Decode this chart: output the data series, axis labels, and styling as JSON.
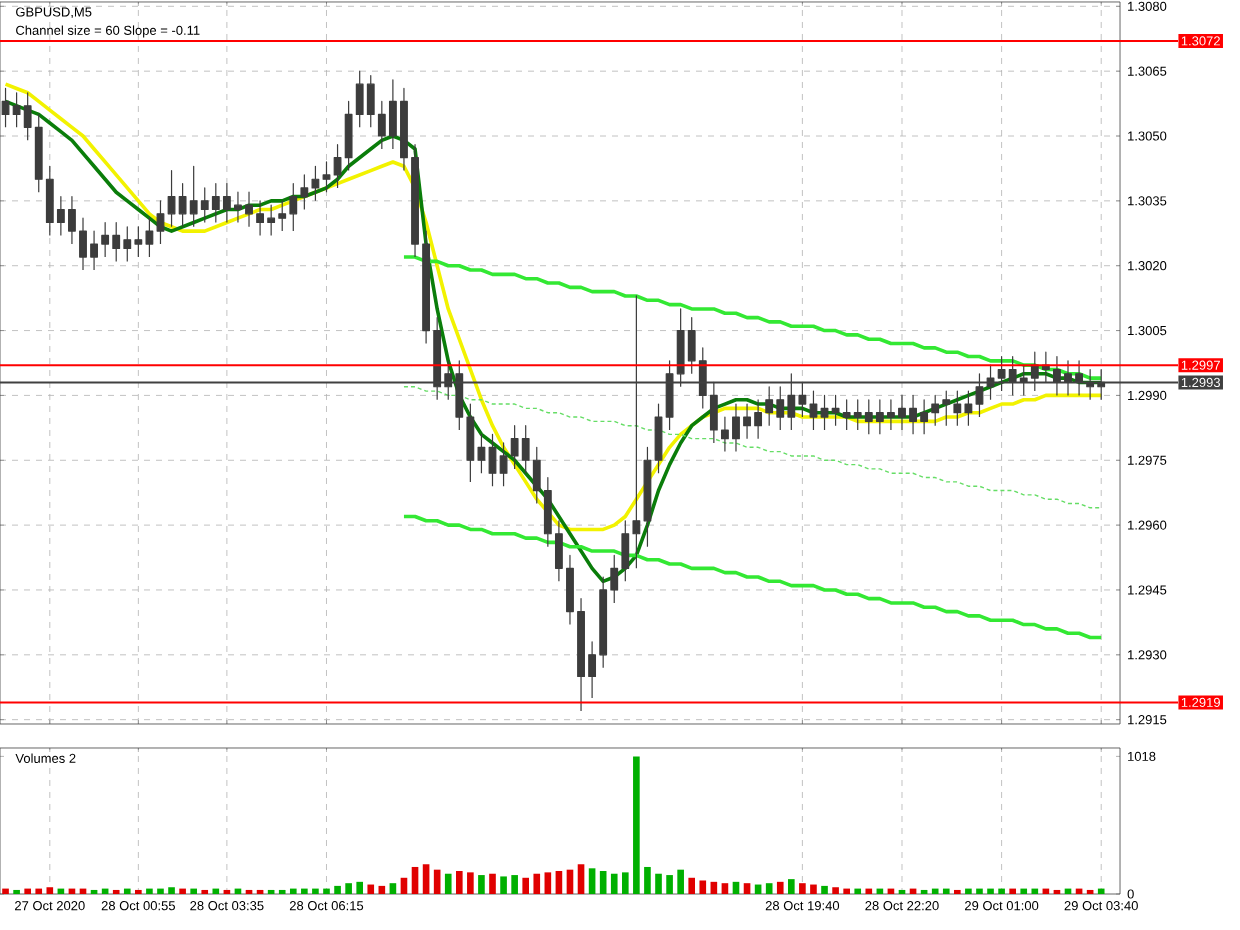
{
  "chart_data": [
    {
      "type": "candlestick",
      "title": "GBPUSD,M5",
      "annotations": [
        "Channel size = 60 Slope = -0.11"
      ],
      "categories": [
        null,
        null,
        null,
        null,
        null,
        null,
        null,
        null,
        null,
        null,
        null,
        null,
        null,
        null,
        null,
        null,
        null,
        null,
        null,
        null,
        null,
        null,
        null,
        null,
        null,
        null,
        null,
        null,
        null,
        null,
        null,
        null,
        null,
        null,
        null,
        null,
        null,
        null,
        null,
        null,
        null,
        null,
        null,
        null,
        null,
        null,
        null,
        null,
        null,
        null,
        null,
        null,
        null,
        null,
        null,
        null,
        null,
        null,
        null,
        null,
        null,
        null,
        null,
        null,
        null,
        null,
        null,
        null,
        null,
        null,
        null,
        null,
        null,
        null,
        null,
        null,
        null,
        null,
        null,
        null,
        null,
        null,
        null,
        null,
        null,
        null,
        null,
        null,
        null,
        null,
        null,
        null,
        null,
        null,
        null,
        null,
        null,
        null,
        null,
        null
      ],
      "color": "#3c3c3c",
      "ohlc": [
        [
          1.3058,
          1.3061,
          1.3052,
          1.3055
        ],
        [
          1.3055,
          1.306,
          1.3052,
          1.3057
        ],
        [
          1.3057,
          1.306,
          1.3049,
          1.3052
        ],
        [
          1.3052,
          1.3055,
          1.3037,
          1.304
        ],
        [
          1.304,
          1.3043,
          1.3027,
          1.303
        ],
        [
          1.303,
          1.3036,
          1.3027,
          1.3033
        ],
        [
          1.3033,
          1.3036,
          1.3025,
          1.3028
        ],
        [
          1.3028,
          1.3031,
          1.3019,
          1.3022
        ],
        [
          1.3022,
          1.3028,
          1.3019,
          1.3025
        ],
        [
          1.3025,
          1.303,
          1.3022,
          1.3027
        ],
        [
          1.3027,
          1.303,
          1.3021,
          1.3024
        ],
        [
          1.3024,
          1.3029,
          1.3021,
          1.3026
        ],
        [
          1.3026,
          1.3029,
          1.3022,
          1.3025
        ],
        [
          1.3025,
          1.3031,
          1.3022,
          1.3028
        ],
        [
          1.3028,
          1.3035,
          1.3025,
          1.3032
        ],
        [
          1.3032,
          1.3042,
          1.3029,
          1.3036
        ],
        [
          1.3036,
          1.3039,
          1.3029,
          1.3032
        ],
        [
          1.3032,
          1.3043,
          1.3029,
          1.3035
        ],
        [
          1.3035,
          1.3038,
          1.303,
          1.3033
        ],
        [
          1.3033,
          1.3039,
          1.303,
          1.3036
        ],
        [
          1.3036,
          1.3039,
          1.303,
          1.3033
        ],
        [
          1.3033,
          1.3037,
          1.303,
          1.3034
        ],
        [
          1.3034,
          1.3037,
          1.3029,
          1.3032
        ],
        [
          1.3032,
          1.3035,
          1.3027,
          1.303
        ],
        [
          1.303,
          1.3034,
          1.3027,
          1.3031
        ],
        [
          1.3031,
          1.3035,
          1.3028,
          1.3032
        ],
        [
          1.3032,
          1.3039,
          1.3028,
          1.3036
        ],
        [
          1.3036,
          1.3041,
          1.3033,
          1.3038
        ],
        [
          1.3038,
          1.3043,
          1.3035,
          1.304
        ],
        [
          1.304,
          1.3044,
          1.3037,
          1.3041
        ],
        [
          1.3041,
          1.3048,
          1.3038,
          1.3045
        ],
        [
          1.3045,
          1.3058,
          1.3042,
          1.3055
        ],
        [
          1.3055,
          1.3065,
          1.3052,
          1.3062
        ],
        [
          1.3062,
          1.3064,
          1.3052,
          1.3055
        ],
        [
          1.3055,
          1.3058,
          1.3047,
          1.305
        ],
        [
          1.305,
          1.3063,
          1.3047,
          1.3058
        ],
        [
          1.3058,
          1.3061,
          1.3042,
          1.3045
        ],
        [
          1.3045,
          1.3048,
          1.3022,
          1.3025
        ],
        [
          1.3025,
          1.3028,
          1.3002,
          1.3005
        ],
        [
          1.3005,
          1.3008,
          1.2989,
          1.2992
        ],
        [
          1.2992,
          1.2998,
          1.2989,
          1.2995
        ],
        [
          1.2995,
          1.2998,
          1.2982,
          1.2985
        ],
        [
          1.2985,
          1.2988,
          1.297,
          1.2975
        ],
        [
          1.2975,
          1.2981,
          1.2972,
          1.2978
        ],
        [
          1.2978,
          1.2981,
          1.2969,
          1.2972
        ],
        [
          1.2972,
          1.2979,
          1.2969,
          1.2976
        ],
        [
          1.2976,
          1.2983,
          1.2973,
          1.298
        ],
        [
          1.298,
          1.2983,
          1.2972,
          1.2975
        ],
        [
          1.2975,
          1.2978,
          1.2965,
          1.2968
        ],
        [
          1.2968,
          1.2971,
          1.2955,
          1.2958
        ],
        [
          1.2958,
          1.2961,
          1.2947,
          1.295
        ],
        [
          1.295,
          1.2953,
          1.2937,
          1.294
        ],
        [
          1.294,
          1.2943,
          1.2917,
          1.2925
        ],
        [
          1.2925,
          1.2933,
          1.292,
          1.293
        ],
        [
          1.293,
          1.2948,
          1.2927,
          1.2945
        ],
        [
          1.2945,
          1.2953,
          1.2942,
          1.295
        ],
        [
          1.295,
          1.2961,
          1.2947,
          1.2958
        ],
        [
          1.2958,
          1.3013,
          1.295,
          1.2961
        ],
        [
          1.2961,
          1.2978,
          1.2955,
          1.2975
        ],
        [
          1.2975,
          1.2988,
          1.2972,
          1.2985
        ],
        [
          1.2985,
          1.2998,
          1.2982,
          1.2995
        ],
        [
          1.2995,
          1.301,
          1.2992,
          1.3005
        ],
        [
          1.3005,
          1.3008,
          1.2995,
          1.2998
        ],
        [
          1.2998,
          1.3001,
          1.2987,
          1.299
        ],
        [
          1.299,
          1.2993,
          1.2979,
          1.2982
        ],
        [
          1.2982,
          1.2985,
          1.2977,
          1.298
        ],
        [
          1.298,
          1.2988,
          1.2977,
          1.2985
        ],
        [
          1.2985,
          1.2988,
          1.298,
          1.2983
        ],
        [
          1.2983,
          1.2989,
          1.298,
          1.2986
        ],
        [
          1.2986,
          1.2992,
          1.2983,
          1.2989
        ],
        [
          1.2989,
          1.2992,
          1.2982,
          1.2985
        ],
        [
          1.2985,
          1.2995,
          1.2982,
          1.299
        ],
        [
          1.299,
          1.2993,
          1.2985,
          1.2988
        ],
        [
          1.2988,
          1.2991,
          1.2982,
          1.2985
        ],
        [
          1.2985,
          1.299,
          1.2982,
          1.2987
        ],
        [
          1.2987,
          1.299,
          1.2983,
          1.2986
        ],
        [
          1.2986,
          1.2989,
          1.2982,
          1.2985
        ],
        [
          1.2985,
          1.2989,
          1.2982,
          1.2986
        ],
        [
          1.2986,
          1.2989,
          1.2981,
          1.2984
        ],
        [
          1.2984,
          1.2989,
          1.2981,
          1.2986
        ],
        [
          1.2986,
          1.2989,
          1.2982,
          1.2985
        ],
        [
          1.2985,
          1.299,
          1.2982,
          1.2987
        ],
        [
          1.2987,
          1.299,
          1.2981,
          1.2984
        ],
        [
          1.2984,
          1.2989,
          1.2981,
          1.2986
        ],
        [
          1.2986,
          1.299,
          1.2983,
          1.2988
        ],
        [
          1.2988,
          1.2991,
          1.2983,
          1.2989
        ],
        [
          1.2988,
          1.2991,
          1.2983,
          1.2986
        ],
        [
          1.2986,
          1.2991,
          1.2983,
          1.2988
        ],
        [
          1.2988,
          1.2995,
          1.2985,
          1.2992
        ],
        [
          1.2992,
          1.2997,
          1.2989,
          1.2994
        ],
        [
          1.2994,
          1.2999,
          1.2991,
          1.2996
        ],
        [
          1.2996,
          1.2999,
          1.299,
          1.2993
        ],
        [
          1.2993,
          1.2997,
          1.299,
          1.2994
        ],
        [
          1.2994,
          1.3,
          1.2991,
          1.2997
        ],
        [
          1.2997,
          1.3,
          1.2993,
          1.2996
        ],
        [
          1.2996,
          1.2999,
          1.299,
          1.2993
        ],
        [
          1.2993,
          1.2998,
          1.299,
          1.2995
        ],
        [
          1.2995,
          1.2998,
          1.299,
          1.2993
        ],
        [
          1.2993,
          1.2996,
          1.2989,
          1.2992
        ],
        [
          1.2992,
          1.2996,
          1.2989,
          1.2993
        ]
      ],
      "series": [
        {
          "type": "line",
          "color": "#f2f200",
          "values": [
            1.3062,
            1.3061,
            1.306,
            1.3058,
            1.3056,
            1.3054,
            1.3052,
            1.305,
            1.3047,
            1.3044,
            1.3041,
            1.3038,
            1.3035,
            1.3032,
            1.303,
            1.3029,
            1.3028,
            1.3028,
            1.3028,
            1.3029,
            1.303,
            1.3031,
            1.3032,
            1.3033,
            1.3033,
            1.3034,
            1.3035,
            1.3036,
            1.3037,
            1.3038,
            1.3039,
            1.304,
            1.3041,
            1.3042,
            1.3043,
            1.3044,
            1.3043,
            1.3038,
            1.303,
            1.302,
            1.301,
            1.3003,
            1.2996,
            1.2989,
            1.2983,
            1.2978,
            1.2974,
            1.297,
            1.2966,
            1.2963,
            1.296,
            1.2959,
            1.2959,
            1.2959,
            1.2959,
            1.296,
            1.2962,
            1.2966,
            1.297,
            1.2974,
            1.2978,
            1.2981,
            1.2983,
            1.2985,
            1.2986,
            1.2987,
            1.2987,
            1.2987,
            1.2987,
            1.2986,
            1.2986,
            1.2986,
            1.2985,
            1.2985,
            1.2985,
            1.2985,
            1.2985,
            1.2984,
            1.2984,
            1.2984,
            1.2984,
            1.2984,
            1.2984,
            1.2984,
            1.2984,
            1.2985,
            1.2985,
            1.2986,
            1.2986,
            1.2987,
            1.2988,
            1.2988,
            1.2989,
            1.2989,
            1.299,
            1.299,
            1.299,
            1.299,
            1.299,
            1.299
          ]
        },
        {
          "type": "line",
          "color": "#0a7d0a",
          "values": [
            1.3058,
            1.3057,
            1.3056,
            1.3055,
            1.3053,
            1.3051,
            1.3049,
            1.3046,
            1.3043,
            1.304,
            1.3037,
            1.3035,
            1.3033,
            1.3031,
            1.3029,
            1.3028,
            1.3029,
            1.303,
            1.3031,
            1.3032,
            1.3033,
            1.3033,
            1.3034,
            1.3034,
            1.3035,
            1.3035,
            1.3036,
            1.3036,
            1.3037,
            1.3038,
            1.304,
            1.3043,
            1.3045,
            1.3047,
            1.3049,
            1.305,
            1.3049,
            1.3047,
            1.3025,
            1.301,
            1.2998,
            1.299,
            1.2985,
            1.2981,
            1.2979,
            1.2977,
            1.2975,
            1.2972,
            1.2969,
            1.2966,
            1.2962,
            1.2958,
            1.2954,
            1.295,
            1.2947,
            1.2948,
            1.295,
            1.2953,
            1.296,
            1.2968,
            1.2974,
            1.2979,
            1.2983,
            1.2985,
            1.2987,
            1.2988,
            1.2989,
            1.2989,
            1.2988,
            1.2988,
            1.2987,
            1.2987,
            1.2987,
            1.2986,
            1.2986,
            1.2986,
            1.2985,
            1.2985,
            1.2985,
            1.2985,
            1.2985,
            1.2985,
            1.2985,
            1.2986,
            1.2987,
            1.2988,
            1.2989,
            1.299,
            1.2991,
            1.2992,
            1.2993,
            1.2994,
            1.2995,
            1.2995,
            1.2995,
            1.2994,
            1.2994,
            1.2993,
            1.2993,
            1.2993
          ]
        },
        {
          "type": "line",
          "color": "#33e833",
          "values": [
            null,
            null,
            null,
            null,
            null,
            null,
            null,
            null,
            null,
            null,
            null,
            null,
            null,
            null,
            null,
            null,
            null,
            null,
            null,
            null,
            null,
            null,
            null,
            null,
            null,
            null,
            null,
            null,
            null,
            null,
            null,
            null,
            null,
            null,
            null,
            null,
            1.3022,
            1.3022,
            1.3021,
            1.3021,
            1.302,
            1.302,
            1.3019,
            1.3019,
            1.3018,
            1.3018,
            1.3018,
            1.3017,
            1.3017,
            1.3016,
            1.3016,
            1.3015,
            1.3015,
            1.3014,
            1.3014,
            1.3014,
            1.3013,
            1.3013,
            1.3012,
            1.3012,
            1.3011,
            1.3011,
            1.301,
            1.301,
            1.301,
            1.3009,
            1.3009,
            1.3008,
            1.3008,
            1.3007,
            1.3007,
            1.3006,
            1.3006,
            1.3006,
            1.3005,
            1.3005,
            1.3004,
            1.3004,
            1.3003,
            1.3003,
            1.3002,
            1.3002,
            1.3002,
            1.3001,
            1.3001,
            1.3,
            1.3,
            1.2999,
            1.2999,
            1.2998,
            1.2998,
            1.2998,
            1.2997,
            1.2997,
            1.2996,
            1.2996,
            1.2995,
            1.2995,
            1.2994,
            1.2994
          ]
        },
        {
          "type": "line",
          "color": "#66dd66",
          "line_style": "dashed",
          "values": [
            null,
            null,
            null,
            null,
            null,
            null,
            null,
            null,
            null,
            null,
            null,
            null,
            null,
            null,
            null,
            null,
            null,
            null,
            null,
            null,
            null,
            null,
            null,
            null,
            null,
            null,
            null,
            null,
            null,
            null,
            null,
            null,
            null,
            null,
            null,
            null,
            1.2992,
            1.2992,
            1.2991,
            1.2991,
            1.299,
            1.299,
            1.2989,
            1.2989,
            1.2988,
            1.2988,
            1.2988,
            1.2987,
            1.2987,
            1.2986,
            1.2986,
            1.2985,
            1.2985,
            1.2984,
            1.2984,
            1.2984,
            1.2983,
            1.2983,
            1.2982,
            1.2982,
            1.2981,
            1.2981,
            1.298,
            1.298,
            1.298,
            1.2979,
            1.2979,
            1.2978,
            1.2978,
            1.2977,
            1.2977,
            1.2976,
            1.2976,
            1.2976,
            1.2975,
            1.2975,
            1.2974,
            1.2974,
            1.2973,
            1.2973,
            1.2972,
            1.2972,
            1.2972,
            1.2971,
            1.2971,
            1.297,
            1.297,
            1.2969,
            1.2969,
            1.2968,
            1.2968,
            1.2968,
            1.2967,
            1.2967,
            1.2966,
            1.2966,
            1.2965,
            1.2965,
            1.2964,
            1.2964
          ]
        },
        {
          "type": "line",
          "color": "#33e833",
          "values": [
            null,
            null,
            null,
            null,
            null,
            null,
            null,
            null,
            null,
            null,
            null,
            null,
            null,
            null,
            null,
            null,
            null,
            null,
            null,
            null,
            null,
            null,
            null,
            null,
            null,
            null,
            null,
            null,
            null,
            null,
            null,
            null,
            null,
            null,
            null,
            null,
            1.2962,
            1.2962,
            1.2961,
            1.2961,
            1.296,
            1.296,
            1.2959,
            1.2959,
            1.2958,
            1.2958,
            1.2958,
            1.2957,
            1.2957,
            1.2956,
            1.2956,
            1.2955,
            1.2955,
            1.2954,
            1.2954,
            1.2954,
            1.2953,
            1.2953,
            1.2952,
            1.2952,
            1.2951,
            1.2951,
            1.295,
            1.295,
            1.295,
            1.2949,
            1.2949,
            1.2948,
            1.2948,
            1.2947,
            1.2947,
            1.2946,
            1.2946,
            1.2946,
            1.2945,
            1.2945,
            1.2944,
            1.2944,
            1.2943,
            1.2943,
            1.2942,
            1.2942,
            1.2942,
            1.2941,
            1.2941,
            1.294,
            1.294,
            1.2939,
            1.2939,
            1.2938,
            1.2938,
            1.2938,
            1.2937,
            1.2937,
            1.2936,
            1.2936,
            1.2935,
            1.2935,
            1.2934,
            1.2934
          ]
        }
      ],
      "ylim": [
        1.2914,
        1.3081
      ],
      "yticks": [
        {
          "value": 1.2915,
          "label": "1.2915"
        },
        {
          "value": 1.293,
          "label": "1.2930"
        },
        {
          "value": 1.2945,
          "label": "1.2945"
        },
        {
          "value": 1.296,
          "label": "1.2960"
        },
        {
          "value": 1.2975,
          "label": "1.2975"
        },
        {
          "value": 1.299,
          "label": "1.2990"
        },
        {
          "value": 1.3005,
          "label": "1.3005"
        },
        {
          "value": 1.302,
          "label": "1.3020"
        },
        {
          "value": 1.3035,
          "label": "1.3035"
        },
        {
          "value": 1.305,
          "label": "1.3050"
        },
        {
          "value": 1.3065,
          "label": "1.3065"
        },
        {
          "value": 1.308,
          "label": "1.3080"
        }
      ],
      "ref_lines": [
        {
          "axis": "y",
          "value": 1.3072,
          "label": "1.3072",
          "color": "#ff0000"
        },
        {
          "axis": "y",
          "value": 1.2997,
          "label": "1.2997",
          "color": "#ff0000"
        },
        {
          "axis": "y",
          "value": 1.2919,
          "label": "1.2919",
          "color": "#ff0000"
        },
        {
          "axis": "y",
          "value": 1.2993,
          "label": "1.2993",
          "color": "#404040"
        }
      ],
      "grid": true,
      "tick_labels": "y"
    },
    {
      "type": "bar",
      "title": "Volumes 2",
      "categories": [
        null,
        null,
        null,
        null,
        "27 Oct 2020",
        null,
        null,
        null,
        null,
        null,
        null,
        null,
        "28 Oct 00:55",
        null,
        null,
        null,
        null,
        null,
        null,
        null,
        "28 Oct 03:35",
        null,
        null,
        null,
        null,
        null,
        null,
        null,
        null,
        "28 Oct 06:15",
        null,
        null,
        null,
        null,
        null,
        null,
        null,
        null,
        null,
        null,
        null,
        null,
        null,
        null,
        null,
        null,
        null,
        null,
        null,
        null,
        null,
        null,
        null,
        null,
        null,
        null,
        null,
        null,
        null,
        null,
        null,
        null,
        null,
        null,
        null,
        null,
        null,
        null,
        null,
        null,
        null,
        null,
        "28 Oct 19:40",
        null,
        null,
        null,
        null,
        null,
        null,
        null,
        null,
        "28 Oct 22:20",
        null,
        null,
        null,
        null,
        null,
        null,
        null,
        null,
        "29 Oct 01:00",
        null,
        null,
        null,
        null,
        null,
        null,
        null,
        null,
        "29 Oct 03:40"
      ],
      "values": [
        40,
        30,
        40,
        40,
        50,
        40,
        40,
        40,
        30,
        40,
        30,
        40,
        30,
        40,
        40,
        50,
        40,
        40,
        30,
        40,
        30,
        40,
        30,
        30,
        30,
        30,
        40,
        40,
        40,
        40,
        60,
        80,
        90,
        70,
        60,
        80,
        120,
        200,
        220,
        180,
        150,
        170,
        160,
        140,
        150,
        130,
        140,
        120,
        150,
        160,
        170,
        180,
        220,
        190,
        170,
        150,
        160,
        1018,
        200,
        150,
        140,
        180,
        120,
        100,
        90,
        80,
        90,
        80,
        70,
        80,
        90,
        110,
        80,
        70,
        60,
        50,
        40,
        40,
        40,
        40,
        40,
        30,
        40,
        30,
        40,
        40,
        30,
        40,
        40,
        40,
        40,
        40,
        40,
        40,
        40,
        30,
        40,
        40,
        30,
        40
      ],
      "colors": [
        "#e00000",
        "#00b000",
        "#e00000",
        "#e00000",
        "#e00000",
        "#00b000",
        "#e00000",
        "#e00000",
        "#00b000",
        "#00b000",
        "#e00000",
        "#00b000",
        "#e00000",
        "#00b000",
        "#00b000",
        "#00b000",
        "#e00000",
        "#00b000",
        "#e00000",
        "#00b000",
        "#e00000",
        "#00b000",
        "#e00000",
        "#e00000",
        "#00b000",
        "#00b000",
        "#00b000",
        "#00b000",
        "#00b000",
        "#00b000",
        "#00b000",
        "#00b000",
        "#00b000",
        "#e00000",
        "#e00000",
        "#00b000",
        "#e00000",
        "#e00000",
        "#e00000",
        "#e00000",
        "#00b000",
        "#e00000",
        "#e00000",
        "#00b000",
        "#e00000",
        "#00b000",
        "#00b000",
        "#e00000",
        "#e00000",
        "#e00000",
        "#e00000",
        "#e00000",
        "#e00000",
        "#00b000",
        "#00b000",
        "#00b000",
        "#00b000",
        "#00b000",
        "#00b000",
        "#00b000",
        "#00b000",
        "#00b000",
        "#e00000",
        "#e00000",
        "#e00000",
        "#e00000",
        "#00b000",
        "#e00000",
        "#00b000",
        "#00b000",
        "#e00000",
        "#00b000",
        "#e00000",
        "#e00000",
        "#00b000",
        "#e00000",
        "#e00000",
        "#00b000",
        "#e00000",
        "#00b000",
        "#e00000",
        "#00b000",
        "#e00000",
        "#00b000",
        "#00b000",
        "#00b000",
        "#e00000",
        "#00b000",
        "#00b000",
        "#00b000",
        "#00b000",
        "#e00000",
        "#00b000",
        "#00b000",
        "#e00000",
        "#e00000",
        "#00b000",
        "#e00000",
        "#e00000",
        "#00b000"
      ],
      "ylim": [
        0,
        1080
      ],
      "yticks": [
        0,
        1018
      ],
      "grid": "x"
    }
  ]
}
